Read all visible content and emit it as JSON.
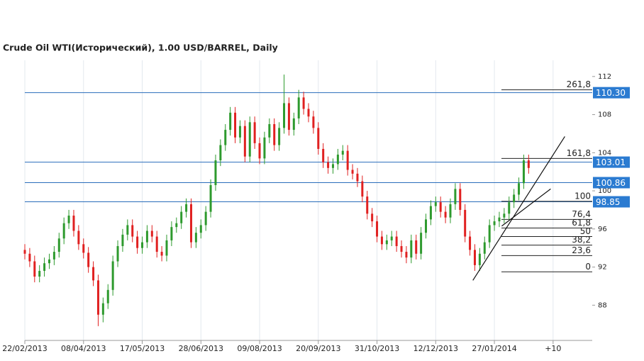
{
  "chart_data": {
    "type": "candlestick",
    "title": "Crude Oil WTI(Исторический), 1.00 USD/BARREL, Daily",
    "up_color": "#2e9a2e",
    "down_color": "#e02020",
    "xlim": [
      0,
      116
    ],
    "ylim": [
      84.3,
      113.7
    ],
    "yticks": [
      88,
      92,
      96,
      100,
      104,
      108,
      112
    ],
    "xticks": [
      {
        "value": 0,
        "label": "22/02/2013"
      },
      {
        "value": 12,
        "label": "08/04/2013"
      },
      {
        "value": 24,
        "label": "17/05/2013"
      },
      {
        "value": 36,
        "label": "28/06/2013"
      },
      {
        "value": 48,
        "label": "09/08/2013"
      },
      {
        "value": 60,
        "label": "20/09/2013"
      },
      {
        "value": 72,
        "label": "31/10/2013"
      },
      {
        "value": 84,
        "label": "12/12/2013"
      },
      {
        "value": 96,
        "label": "27/01/2014"
      },
      {
        "value": 108,
        "label": "+10"
      }
    ],
    "grid": true,
    "candles": [
      [
        93.8,
        94.4,
        92.8,
        93.4
      ],
      [
        93.4,
        94.0,
        92.0,
        92.6
      ],
      [
        92.6,
        93.2,
        90.4,
        91.0
      ],
      [
        91.0,
        92.2,
        90.4,
        91.6
      ],
      [
        91.6,
        93.0,
        91.0,
        92.4
      ],
      [
        92.4,
        93.4,
        91.8,
        92.8
      ],
      [
        92.8,
        94.2,
        92.2,
        93.6
      ],
      [
        93.6,
        95.6,
        93.0,
        95.0
      ],
      [
        95.0,
        97.2,
        94.4,
        96.6
      ],
      [
        96.6,
        98.0,
        96.0,
        97.4
      ],
      [
        97.4,
        98.0,
        95.2,
        95.8
      ],
      [
        95.8,
        96.4,
        93.8,
        94.4
      ],
      [
        94.4,
        95.0,
        92.9,
        93.5
      ],
      [
        93.5,
        94.1,
        91.4,
        92.0
      ],
      [
        92.0,
        92.6,
        90.0,
        90.6
      ],
      [
        90.6,
        91.2,
        85.8,
        87.0
      ],
      [
        87.0,
        88.8,
        86.2,
        88.2
      ],
      [
        88.2,
        90.2,
        87.6,
        89.6
      ],
      [
        89.6,
        93.2,
        89.0,
        92.6
      ],
      [
        92.6,
        94.8,
        92.0,
        94.2
      ],
      [
        94.2,
        96.0,
        93.6,
        95.4
      ],
      [
        95.4,
        97.0,
        94.8,
        96.4
      ],
      [
        96.4,
        97.0,
        94.6,
        95.2
      ],
      [
        95.2,
        95.8,
        93.4,
        94.0
      ],
      [
        94.0,
        95.2,
        93.4,
        94.6
      ],
      [
        94.6,
        96.4,
        94.0,
        95.8
      ],
      [
        95.8,
        96.4,
        94.6,
        95.2
      ],
      [
        95.2,
        95.8,
        93.0,
        93.6
      ],
      [
        93.6,
        94.2,
        92.6,
        93.2
      ],
      [
        93.2,
        95.4,
        92.6,
        94.8
      ],
      [
        94.8,
        96.8,
        94.2,
        96.2
      ],
      [
        96.2,
        97.2,
        95.6,
        96.6
      ],
      [
        96.6,
        98.4,
        96.0,
        97.8
      ],
      [
        97.8,
        99.2,
        97.2,
        98.6
      ],
      [
        98.6,
        99.2,
        94.0,
        94.6
      ],
      [
        94.6,
        96.2,
        94.0,
        95.6
      ],
      [
        95.6,
        97.0,
        95.0,
        96.4
      ],
      [
        96.4,
        98.4,
        95.8,
        97.8
      ],
      [
        97.8,
        101.2,
        97.2,
        100.6
      ],
      [
        100.6,
        103.8,
        100.0,
        103.2
      ],
      [
        103.2,
        105.4,
        102.6,
        104.8
      ],
      [
        104.8,
        107.0,
        104.2,
        106.4
      ],
      [
        106.4,
        108.8,
        105.8,
        108.2
      ],
      [
        108.2,
        108.8,
        105.0,
        105.6
      ],
      [
        105.6,
        107.4,
        105.0,
        106.8
      ],
      [
        106.8,
        107.4,
        103.0,
        103.6
      ],
      [
        103.6,
        107.8,
        103.0,
        107.2
      ],
      [
        107.2,
        107.8,
        104.4,
        105.0
      ],
      [
        105.0,
        105.6,
        102.8,
        103.4
      ],
      [
        103.4,
        106.2,
        102.8,
        105.6
      ],
      [
        105.6,
        107.6,
        105.0,
        107.0
      ],
      [
        107.0,
        107.6,
        104.2,
        104.8
      ],
      [
        104.8,
        107.2,
        104.2,
        106.6
      ],
      [
        106.6,
        112.2,
        106.0,
        109.2
      ],
      [
        109.2,
        109.8,
        105.8,
        106.4
      ],
      [
        106.4,
        108.2,
        105.8,
        107.6
      ],
      [
        107.6,
        110.6,
        107.0,
        109.8
      ],
      [
        109.8,
        110.4,
        108.0,
        108.6
      ],
      [
        108.6,
        109.2,
        107.2,
        107.8
      ],
      [
        107.8,
        108.4,
        106.0,
        106.6
      ],
      [
        106.6,
        107.2,
        103.8,
        104.4
      ],
      [
        104.4,
        105.0,
        102.4,
        103.0
      ],
      [
        103.0,
        103.6,
        101.8,
        102.4
      ],
      [
        102.4,
        103.4,
        101.8,
        102.8
      ],
      [
        102.8,
        104.4,
        102.2,
        103.8
      ],
      [
        103.8,
        104.8,
        103.2,
        104.2
      ],
      [
        104.2,
        104.8,
        101.6,
        102.2
      ],
      [
        102.2,
        102.8,
        101.2,
        101.8
      ],
      [
        101.8,
        102.4,
        100.4,
        101.0
      ],
      [
        101.0,
        101.6,
        98.8,
        99.4
      ],
      [
        99.4,
        100.0,
        97.0,
        97.6
      ],
      [
        97.6,
        98.2,
        96.2,
        96.8
      ],
      [
        96.8,
        97.4,
        94.6,
        95.2
      ],
      [
        95.2,
        95.8,
        93.8,
        94.4
      ],
      [
        94.4,
        95.4,
        93.8,
        94.8
      ],
      [
        94.8,
        95.8,
        94.2,
        95.2
      ],
      [
        95.2,
        95.8,
        93.6,
        94.2
      ],
      [
        94.2,
        94.8,
        93.0,
        93.6
      ],
      [
        93.6,
        94.2,
        92.4,
        93.0
      ],
      [
        93.0,
        95.4,
        92.4,
        94.8
      ],
      [
        94.8,
        95.4,
        92.8,
        93.4
      ],
      [
        93.4,
        96.2,
        92.8,
        95.6
      ],
      [
        95.6,
        97.6,
        95.0,
        97.0
      ],
      [
        97.0,
        99.0,
        96.4,
        98.4
      ],
      [
        98.4,
        99.4,
        97.8,
        98.8
      ],
      [
        98.8,
        99.4,
        97.2,
        97.8
      ],
      [
        97.8,
        98.4,
        96.6,
        97.2
      ],
      [
        97.2,
        99.2,
        96.6,
        98.6
      ],
      [
        98.6,
        100.8,
        98.0,
        100.2
      ],
      [
        100.2,
        100.8,
        97.4,
        98.0
      ],
      [
        98.0,
        98.6,
        94.6,
        95.2
      ],
      [
        95.2,
        95.8,
        93.2,
        93.8
      ],
      [
        93.8,
        94.4,
        91.6,
        92.2
      ],
      [
        92.2,
        94.0,
        91.6,
        93.4
      ],
      [
        93.4,
        95.2,
        92.8,
        94.6
      ],
      [
        94.6,
        97.0,
        94.0,
        96.4
      ],
      [
        96.4,
        97.4,
        95.8,
        96.8
      ],
      [
        96.8,
        97.8,
        96.2,
        97.2
      ],
      [
        97.2,
        98.2,
        96.6,
        97.6
      ],
      [
        97.6,
        99.4,
        97.0,
        98.8
      ],
      [
        98.8,
        100.2,
        98.2,
        99.6
      ],
      [
        99.6,
        101.4,
        99.0,
        100.8
      ],
      [
        100.8,
        103.8,
        100.2,
        103.2
      ],
      [
        103.2,
        103.8,
        101.8,
        102.4
      ]
    ],
    "price_lines": {
      "values": [
        110.3,
        103.01,
        100.86,
        98.85
      ],
      "value_labels": [
        "110.30",
        "103.01",
        "100.86",
        "98.85"
      ],
      "color": "#2a6ebb"
    },
    "fibonacci": {
      "labels": [
        "261,8",
        "161,8",
        "100",
        "76,4",
        "61,8",
        "50",
        "38,2",
        "23,6",
        "0"
      ],
      "values": [
        110.6,
        103.4,
        98.9,
        97.0,
        96.1,
        95.2,
        94.3,
        93.2,
        91.5
      ]
    },
    "trendlines": [
      {
        "x": [
          91.6,
          110.4
        ],
        "y": [
          90.6,
          105.7
        ]
      },
      {
        "x": [
          97.5,
          107.5
        ],
        "y": [
          96.3,
          100.2
        ]
      }
    ]
  }
}
